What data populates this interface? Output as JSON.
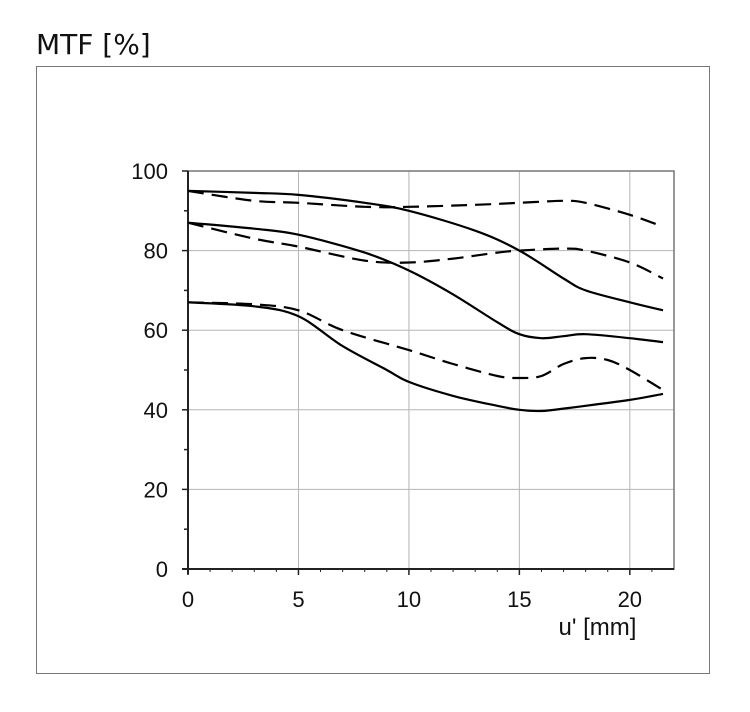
{
  "chart_data": {
    "type": "line",
    "title": "MTF [%]",
    "xlabel": "u' [mm]",
    "ylabel": "",
    "xlim": [
      0,
      22
    ],
    "ylim": [
      0,
      100
    ],
    "x_ticks": [
      0,
      5,
      10,
      15,
      20
    ],
    "y_ticks": [
      0,
      20,
      40,
      60,
      80,
      100
    ],
    "grid": true,
    "legend": "none",
    "series": [
      {
        "style": "solid",
        "points": [
          [
            0,
            95
          ],
          [
            3,
            94.5
          ],
          [
            5,
            94
          ],
          [
            8,
            92
          ],
          [
            10,
            90
          ],
          [
            13,
            85
          ],
          [
            15,
            80
          ],
          [
            17,
            73
          ],
          [
            18,
            70
          ],
          [
            20,
            67
          ],
          [
            21.5,
            65
          ]
        ]
      },
      {
        "style": "dashed",
        "points": [
          [
            0,
            95
          ],
          [
            3,
            92.5
          ],
          [
            5,
            92
          ],
          [
            8,
            91
          ],
          [
            10,
            91
          ],
          [
            13,
            91.5
          ],
          [
            15,
            92
          ],
          [
            17,
            92.5
          ],
          [
            18,
            92
          ],
          [
            20,
            89
          ],
          [
            21.5,
            86
          ]
        ]
      },
      {
        "style": "solid",
        "points": [
          [
            0,
            87
          ],
          [
            3,
            85.5
          ],
          [
            5,
            84
          ],
          [
            8,
            79.5
          ],
          [
            10,
            75
          ],
          [
            12,
            69
          ],
          [
            14,
            62
          ],
          [
            15,
            59
          ],
          [
            16,
            58
          ],
          [
            17,
            58.5
          ],
          [
            18,
            59
          ],
          [
            20,
            58
          ],
          [
            21.5,
            57
          ]
        ]
      },
      {
        "style": "dashed",
        "points": [
          [
            0,
            87
          ],
          [
            3,
            83
          ],
          [
            5,
            81
          ],
          [
            8,
            77.5
          ],
          [
            10,
            77
          ],
          [
            12,
            78
          ],
          [
            14,
            79.5
          ],
          [
            15,
            80
          ],
          [
            17,
            80.5
          ],
          [
            18,
            80
          ],
          [
            20,
            77
          ],
          [
            21.5,
            73
          ]
        ]
      },
      {
        "style": "solid",
        "points": [
          [
            0,
            67
          ],
          [
            3,
            66
          ],
          [
            5,
            63.5
          ],
          [
            7,
            56
          ],
          [
            9,
            50
          ],
          [
            10,
            47
          ],
          [
            12,
            43.5
          ],
          [
            14,
            41
          ],
          [
            15,
            40
          ],
          [
            16,
            39.7
          ],
          [
            17,
            40.3
          ],
          [
            18,
            41
          ],
          [
            20,
            42.5
          ],
          [
            21.5,
            44
          ]
        ]
      },
      {
        "style": "dashed",
        "points": [
          [
            0,
            67
          ],
          [
            3,
            66.5
          ],
          [
            5,
            65
          ],
          [
            7,
            60
          ],
          [
            10,
            55
          ],
          [
            12,
            51.5
          ],
          [
            14,
            48.5
          ],
          [
            15,
            48
          ],
          [
            16,
            48.5
          ],
          [
            17,
            51.5
          ],
          [
            18,
            53
          ],
          [
            19,
            52.5
          ],
          [
            20,
            50
          ],
          [
            21.5,
            45
          ]
        ]
      }
    ]
  }
}
